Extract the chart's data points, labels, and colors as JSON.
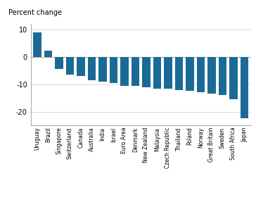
{
  "categories": [
    "Uruguay",
    "Brazil",
    "Singapore",
    "Switzerland",
    "Canada",
    "Australia",
    "India",
    "Israel",
    "Euro Area",
    "Denmark",
    "New Zealand",
    "Malaysia",
    "Czech Republic",
    "Thailand",
    "Poland",
    "Norway",
    "Great Britain",
    "Sweden",
    "South Africa",
    "Japan"
  ],
  "values": [
    9.0,
    2.2,
    -4.5,
    -6.5,
    -7.0,
    -8.5,
    -9.0,
    -9.5,
    -10.5,
    -10.5,
    -11.0,
    -11.5,
    -11.5,
    -12.0,
    -12.5,
    -13.0,
    -13.5,
    -14.0,
    -15.5,
    -22.5
  ],
  "bar_color": "#1b6a96",
  "ylabel": "Percent change",
  "ylim": [
    -25,
    12
  ],
  "yticks": [
    -20,
    -10,
    0,
    10
  ],
  "background_color": "#ffffff",
  "spine_color": "#aaaaaa",
  "grid_color": "#cccccc",
  "figsize": [
    3.64,
    2.87
  ],
  "dpi": 100
}
